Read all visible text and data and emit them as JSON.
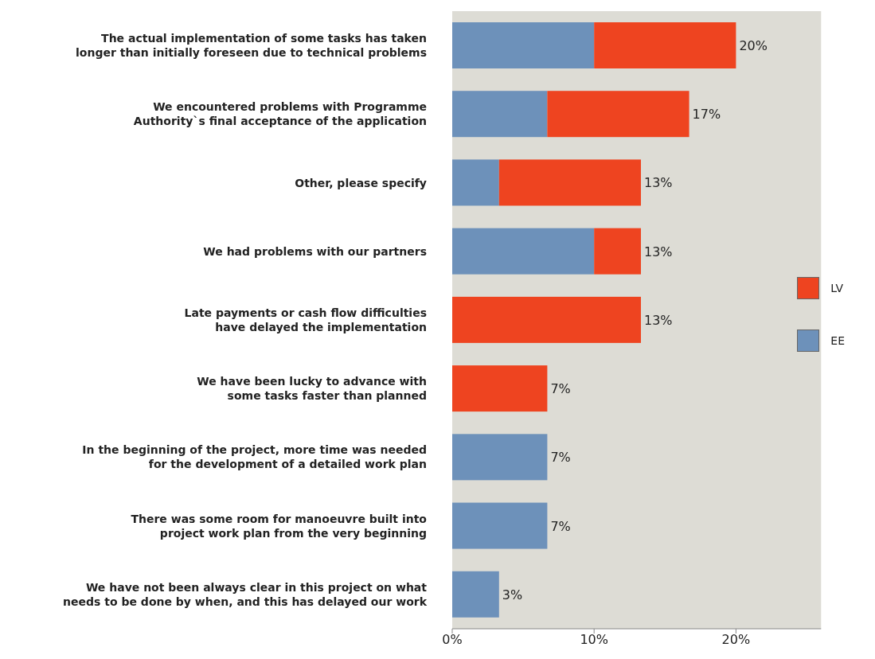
{
  "chart_data": {
    "type": "bar",
    "orientation": "horizontal",
    "stacked": true,
    "categories": [
      "The actual implementation of some tasks has taken\nlonger than initially foreseen due to technical problems",
      "We encountered problems with Programme\nAuthority`s final acceptance of the application",
      "Other, please specify",
      "We had problems with our partners",
      "Late payments or cash flow difficulties\nhave delayed the implementation",
      "We have been lucky to advance with\nsome tasks faster than planned",
      "In the beginning of the project, more time was needed\nfor the development of a detailed work plan",
      "There was some room for manoeuvre built into\nproject work plan from the very beginning",
      "We have not been always clear in this project on what\nneeds to be done by when, and this has delayed our work"
    ],
    "series": [
      {
        "name": "EE",
        "color": "#6d91ba",
        "values": [
          10,
          6.7,
          3.3,
          10,
          null,
          null,
          6.7,
          6.7,
          3.3
        ]
      },
      {
        "name": "LV",
        "color": "#ee4420",
        "values": [
          10,
          10,
          10,
          3.3,
          13.3,
          6.7,
          null,
          null,
          null
        ]
      }
    ],
    "totals": [
      "20%",
      "17%",
      "13%",
      "13%",
      "13%",
      "7%",
      "7%",
      "7%",
      "3%"
    ],
    "xlim": [
      0,
      26
    ],
    "xticks": [
      {
        "value": 0,
        "label": "0%"
      },
      {
        "value": 10,
        "label": "10%"
      },
      {
        "value": 20,
        "label": "20%"
      }
    ],
    "legend": "right"
  }
}
